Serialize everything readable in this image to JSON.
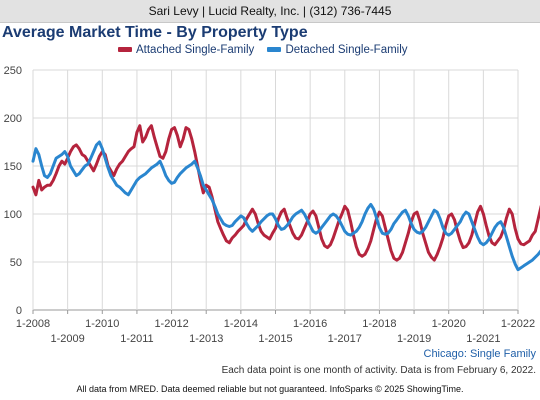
{
  "header": {
    "agent_line": "Sari Levy | Lucid Realty, Inc. | (312) 736-7445"
  },
  "colors": {
    "attached": "#b5243d",
    "detached": "#2a86cf",
    "title": "#1b3c73",
    "grid": "#d9d9d9"
  },
  "chart_data": {
    "type": "line",
    "title": "Average Market Time - By Property Type",
    "ylim": [
      0,
      250
    ],
    "yticks": [
      "0",
      "50",
      "100",
      "150",
      "200",
      "250"
    ],
    "x_start": "2008-01",
    "x_end": "2022-01",
    "xticks_upper": [
      "1-2008",
      "1-2010",
      "1-2012",
      "1-2014",
      "1-2016",
      "1-2018",
      "1-2020",
      "1-2022"
    ],
    "xticks_lower": [
      "1-2009",
      "1-2011",
      "1-2013",
      "1-2015",
      "1-2017",
      "1-2019",
      "1-2021"
    ],
    "grid": true,
    "legend_position": "top",
    "series": [
      {
        "name": "Attached Single-Family",
        "color": "#b5243d",
        "values": [
          128,
          120,
          135,
          125,
          128,
          130,
          130,
          135,
          142,
          150,
          155,
          152,
          158,
          165,
          170,
          172,
          168,
          162,
          160,
          155,
          150,
          145,
          152,
          160,
          165,
          162,
          150,
          145,
          140,
          147,
          152,
          155,
          160,
          165,
          168,
          170,
          185,
          192,
          175,
          180,
          188,
          192,
          180,
          170,
          160,
          158,
          165,
          178,
          188,
          190,
          182,
          170,
          178,
          190,
          188,
          178,
          165,
          150,
          135,
          122,
          130,
          128,
          118,
          105,
          92,
          85,
          78,
          72,
          70,
          75,
          78,
          82,
          85,
          88,
          95,
          100,
          105,
          100,
          90,
          82,
          78,
          76,
          74,
          80,
          85,
          95,
          102,
          105,
          96,
          88,
          80,
          75,
          74,
          78,
          85,
          92,
          100,
          103,
          98,
          86,
          74,
          67,
          65,
          68,
          75,
          84,
          93,
          100,
          108,
          104,
          92,
          78,
          66,
          58,
          56,
          58,
          64,
          72,
          84,
          95,
          102,
          98,
          86,
          74,
          62,
          54,
          52,
          54,
          60,
          70,
          80,
          92,
          100,
          102,
          93,
          80,
          70,
          60,
          55,
          52,
          58,
          66,
          75,
          88,
          98,
          100,
          94,
          82,
          72,
          65,
          66,
          70,
          78,
          90,
          102,
          108,
          100,
          88,
          77,
          70,
          68,
          72,
          76,
          84,
          96,
          105,
          100,
          85,
          74,
          69,
          68,
          70,
          72,
          78,
          82,
          95,
          108
        ]
      },
      {
        "name": "Detached Single-Family",
        "color": "#2a86cf",
        "values": [
          155,
          168,
          162,
          150,
          140,
          138,
          142,
          150,
          158,
          160,
          162,
          165,
          160,
          150,
          145,
          140,
          142,
          146,
          150,
          152,
          158,
          165,
          172,
          175,
          168,
          158,
          148,
          140,
          135,
          130,
          128,
          125,
          122,
          120,
          125,
          130,
          135,
          138,
          140,
          142,
          145,
          148,
          150,
          152,
          155,
          148,
          140,
          135,
          132,
          133,
          138,
          142,
          145,
          148,
          150,
          152,
          155,
          148,
          140,
          130,
          125,
          120,
          115,
          108,
          100,
          95,
          90,
          88,
          87,
          88,
          92,
          95,
          98,
          96,
          90,
          85,
          82,
          85,
          88,
          92,
          95,
          98,
          100,
          100,
          95,
          88,
          84,
          85,
          88,
          92,
          97,
          100,
          102,
          104,
          100,
          94,
          88,
          82,
          80,
          82,
          86,
          90,
          94,
          98,
          100,
          98,
          94,
          88,
          82,
          79,
          78,
          80,
          82,
          86,
          92,
          100,
          106,
          110,
          105,
          96,
          86,
          80,
          79,
          80,
          84,
          90,
          94,
          98,
          102,
          104,
          98,
          90,
          84,
          81,
          80,
          82,
          86,
          92,
          98,
          104,
          102,
          95,
          86,
          80,
          78,
          80,
          84,
          88,
          92,
          98,
          102,
          100,
          92,
          84,
          76,
          70,
          68,
          70,
          74,
          80,
          86,
          90,
          92,
          86,
          76,
          66,
          56,
          48,
          42,
          44,
          46,
          48,
          50,
          52,
          55,
          58,
          62
        ]
      }
    ]
  },
  "caption": "Chicago: Single Family",
  "note": "Each data point is one month of activity. Data is from February 6, 2022.",
  "footer": "All data from MRED. Data deemed reliable but not guaranteed. InfoSparks © 2025 ShowingTime."
}
